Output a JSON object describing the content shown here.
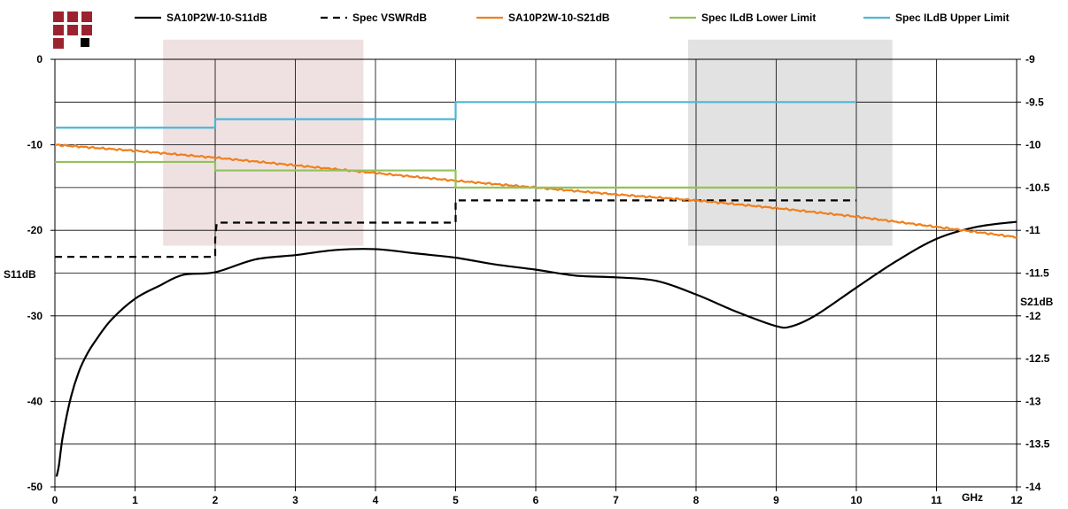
{
  "chart_data": {
    "type": "line",
    "x_unit_label": "GHz",
    "xlim": [
      0,
      12
    ],
    "x_ticks": [
      "0",
      "1",
      "2",
      "3",
      "4",
      "5",
      "6",
      "7",
      "8",
      "9",
      "10",
      "11",
      "12"
    ],
    "left_axis": {
      "label": "S11dB",
      "ylim": [
        -50,
        0
      ],
      "ticks": [
        "0",
        "-10",
        "-20",
        "-30",
        "-40",
        "-50"
      ]
    },
    "right_axis": {
      "label": "S21dB",
      "ylim": [
        -14,
        -9
      ],
      "ticks": [
        "-9",
        "-9.5",
        "-10",
        "-10.5",
        "-11",
        "-11.5",
        "-12",
        "-12.5",
        "-13",
        "-13.5",
        "-14"
      ]
    },
    "grid": true,
    "legend_position": "top",
    "highlight_bands": [
      {
        "x": [
          1.35,
          3.85
        ],
        "y_left": [
          -21.8,
          2.3
        ],
        "color": "#efe1e1"
      },
      {
        "x": [
          7.9,
          10.45
        ],
        "y_left": [
          -21.8,
          2.3
        ],
        "color": "#e2e2e2"
      }
    ],
    "series": [
      {
        "name": "SA10P2W-10-S11dB",
        "axis": "left",
        "color": "#000000",
        "dash": "solid",
        "x": [
          0.02,
          0.05,
          0.1,
          0.2,
          0.3,
          0.4,
          0.5,
          0.7,
          1,
          1.3,
          1.6,
          2,
          2.5,
          3,
          3.5,
          4,
          4.5,
          5,
          5.5,
          6,
          6.5,
          7,
          7.5,
          8,
          8.5,
          9,
          9.2,
          9.5,
          10,
          10.5,
          11,
          11.5,
          12
        ],
        "y": [
          -48.8,
          -47.5,
          -44,
          -39.5,
          -36.5,
          -34.5,
          -33,
          -30.5,
          -28,
          -26.5,
          -25.2,
          -24.9,
          -23.4,
          -22.9,
          -22.3,
          -22.2,
          -22.7,
          -23.2,
          -24,
          -24.6,
          -25.3,
          -25.5,
          -25.9,
          -27.5,
          -29.5,
          -31.2,
          -31.2,
          -29.9,
          -26.7,
          -23.6,
          -21,
          -19.6,
          -19
        ]
      },
      {
        "name": "Spec VSWRdB",
        "axis": "left",
        "color": "#000000",
        "dash": "dashed",
        "x": [
          0,
          2,
          2,
          2.02,
          5,
          5,
          10
        ],
        "y": [
          -23.1,
          -23.1,
          -21,
          -19.1,
          -19.1,
          -16.5,
          -16.5
        ]
      },
      {
        "name": "SA10P2W-10-S21dB",
        "axis": "right",
        "color": "#f07f1c",
        "dash": "solid",
        "noisy": true,
        "x": [
          0,
          1,
          2,
          3,
          4,
          5,
          6,
          7,
          8,
          9,
          10,
          11,
          12
        ],
        "y": [
          -10,
          -10.07,
          -10.15,
          -10.24,
          -10.33,
          -10.42,
          -10.5,
          -10.58,
          -10.65,
          -10.74,
          -10.84,
          -10.96,
          -11.08
        ]
      },
      {
        "name": "Spec ILdB Lower Limit",
        "axis": "right",
        "color": "#92c25a",
        "dash": "solid",
        "x": [
          0,
          2,
          2,
          5,
          5,
          10
        ],
        "y": [
          -10.2,
          -10.2,
          -10.3,
          -10.3,
          -10.5,
          -10.5
        ]
      },
      {
        "name": "Spec ILdB Upper Limit",
        "axis": "right",
        "color": "#4db6d6",
        "dash": "solid",
        "x": [
          0,
          2,
          2,
          5,
          5,
          10
        ],
        "y": [
          -9.8,
          -9.8,
          -9.7,
          -9.7,
          -9.5,
          -9.5
        ]
      }
    ]
  },
  "logo": {
    "squares": [
      "#9b2330",
      "#9b2330",
      "#9b2330",
      "#9b2330",
      "#9b2330",
      "#9b2330",
      "#9b2330",
      "#000000"
    ]
  }
}
